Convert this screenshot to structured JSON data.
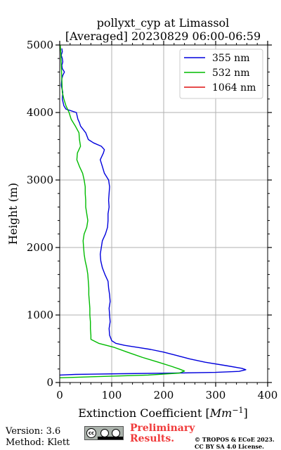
{
  "chart_data": {
    "type": "line",
    "title_line1": "pollyxt_cyp at Limassol",
    "title_line2": "[Averaged] 20230829 06:00-06:59",
    "xlabel": "Extinction Coefficient [",
    "xlabel_unit": "Mm",
    "xlabel_exp": "−1",
    "xlabel_close": "]",
    "ylabel": "Height (m)",
    "xlim": [
      0,
      400
    ],
    "ylim": [
      0,
      5000
    ],
    "x_ticks": [
      0,
      100,
      200,
      300,
      400
    ],
    "y_ticks": [
      0,
      1000,
      2000,
      3000,
      4000,
      5000
    ],
    "x_tick_labels": [
      "0",
      "100",
      "200",
      "300",
      "400"
    ],
    "y_tick_labels": [
      "0",
      "1000",
      "2000",
      "3000",
      "4000",
      "5000"
    ],
    "grid": true,
    "legend_position": "top-right",
    "series": [
      {
        "name": "355 nm",
        "color": "#0000dd",
        "points": [
          [
            0,
            110
          ],
          [
            30,
            120
          ],
          [
            120,
            130
          ],
          [
            220,
            140
          ],
          [
            300,
            150
          ],
          [
            345,
            165
          ],
          [
            358,
            190
          ],
          [
            350,
            210
          ],
          [
            320,
            250
          ],
          [
            280,
            300
          ],
          [
            250,
            350
          ],
          [
            225,
            400
          ],
          [
            200,
            450
          ],
          [
            175,
            490
          ],
          [
            150,
            520
          ],
          [
            125,
            550
          ],
          [
            108,
            580
          ],
          [
            100,
            620
          ],
          [
            96,
            700
          ],
          [
            95,
            800
          ],
          [
            97,
            900
          ],
          [
            96,
            1000
          ],
          [
            95,
            1100
          ],
          [
            97,
            1200
          ],
          [
            96,
            1300
          ],
          [
            94,
            1400
          ],
          [
            93,
            1500
          ],
          [
            87,
            1600
          ],
          [
            82,
            1700
          ],
          [
            79,
            1800
          ],
          [
            78,
            1900
          ],
          [
            80,
            2000
          ],
          [
            82,
            2100
          ],
          [
            88,
            2200
          ],
          [
            92,
            2300
          ],
          [
            93,
            2400
          ],
          [
            93,
            2500
          ],
          [
            95,
            2600
          ],
          [
            94,
            2700
          ],
          [
            95,
            2800
          ],
          [
            96,
            2900
          ],
          [
            94,
            3000
          ],
          [
            86,
            3100
          ],
          [
            82,
            3200
          ],
          [
            78,
            3300
          ],
          [
            84,
            3400
          ],
          [
            86,
            3450
          ],
          [
            80,
            3500
          ],
          [
            65,
            3550
          ],
          [
            55,
            3600
          ],
          [
            50,
            3700
          ],
          [
            40,
            3800
          ],
          [
            38,
            3850
          ],
          [
            35,
            3900
          ],
          [
            32,
            4000
          ],
          [
            12,
            4050
          ],
          [
            8,
            4100
          ],
          [
            5,
            4200
          ],
          [
            6,
            4300
          ],
          [
            3,
            4400
          ],
          [
            4,
            4500
          ],
          [
            6,
            4550
          ],
          [
            9,
            4600
          ],
          [
            5,
            4650
          ],
          [
            4,
            4700
          ],
          [
            6,
            4750
          ],
          [
            5,
            4800
          ],
          [
            3,
            4850
          ],
          [
            5,
            4900
          ],
          [
            4,
            4950
          ]
        ]
      },
      {
        "name": "532 nm",
        "color": "#00bb00",
        "points": [
          [
            0,
            70
          ],
          [
            80,
            90
          ],
          [
            170,
            110
          ],
          [
            230,
            140
          ],
          [
            240,
            170
          ],
          [
            230,
            200
          ],
          [
            215,
            240
          ],
          [
            190,
            300
          ],
          [
            160,
            370
          ],
          [
            130,
            450
          ],
          [
            105,
            520
          ],
          [
            75,
            580
          ],
          [
            60,
            640
          ],
          [
            60,
            700
          ],
          [
            59,
            800
          ],
          [
            59,
            900
          ],
          [
            58,
            1000
          ],
          [
            58,
            1100
          ],
          [
            57,
            1200
          ],
          [
            56,
            1300
          ],
          [
            56,
            1400
          ],
          [
            55,
            1500
          ],
          [
            54,
            1600
          ],
          [
            52,
            1700
          ],
          [
            49,
            1800
          ],
          [
            47,
            1900
          ],
          [
            46,
            2000
          ],
          [
            45,
            2100
          ],
          [
            47,
            2200
          ],
          [
            52,
            2300
          ],
          [
            54,
            2400
          ],
          [
            52,
            2500
          ],
          [
            50,
            2600
          ],
          [
            50,
            2700
          ],
          [
            49,
            2800
          ],
          [
            49,
            2900
          ],
          [
            47,
            3000
          ],
          [
            44,
            3100
          ],
          [
            38,
            3200
          ],
          [
            33,
            3300
          ],
          [
            34,
            3400
          ],
          [
            40,
            3500
          ],
          [
            38,
            3600
          ],
          [
            37,
            3700
          ],
          [
            30,
            3800
          ],
          [
            22,
            3900
          ],
          [
            18,
            4000
          ],
          [
            12,
            4100
          ],
          [
            8,
            4200
          ],
          [
            5,
            4300
          ],
          [
            4,
            4500
          ],
          [
            3,
            4700
          ],
          [
            2,
            4900
          ],
          [
            1,
            5000
          ]
        ]
      },
      {
        "name": "1064 nm",
        "color": "#dd1111",
        "points": []
      }
    ]
  },
  "footer": {
    "version": "Version: 3.6",
    "method": "Method: Klett",
    "cc_badge": "cc",
    "preliminary_line1": "Preliminary",
    "preliminary_line2": "Results.",
    "copyright_line1": "© TROPOS & ECoE 2023.",
    "copyright_line2": "CC BY SA 4.0 License."
  }
}
